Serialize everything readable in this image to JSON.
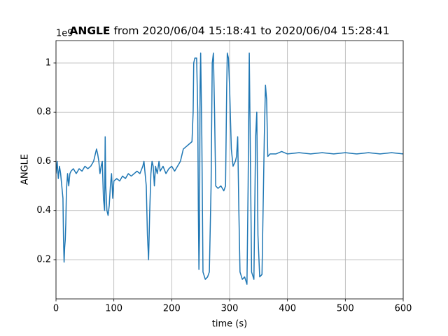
{
  "chart_data": {
    "type": "line",
    "title_bold": "ANGLE",
    "title": "from 2020/06/04 15:18:41 to 2020/06/04 15:28:41",
    "offset_label": "1e9",
    "xlabel": "time (s)",
    "ylabel": "ANGLE",
    "xlim": [
      0,
      600
    ],
    "ylim": [
      0.0405,
      1.091
    ],
    "xticks": [
      0,
      100,
      200,
      300,
      400,
      500,
      600
    ],
    "yticks": [
      0.2,
      0.4,
      0.6,
      0.8,
      1.0
    ],
    "grid": true,
    "x": [
      0,
      2,
      4,
      6,
      8,
      10,
      12,
      13,
      14,
      15,
      16,
      17,
      18,
      20,
      22,
      24,
      26,
      30,
      35,
      40,
      45,
      50,
      55,
      60,
      65,
      70,
      72,
      74,
      76,
      78,
      80,
      82,
      84,
      85,
      86,
      88,
      90,
      92,
      94,
      96,
      98,
      100,
      105,
      110,
      115,
      120,
      125,
      130,
      135,
      140,
      145,
      150,
      152,
      154,
      156,
      158,
      160,
      162,
      164,
      166,
      168,
      170,
      172,
      175,
      178,
      180,
      185,
      190,
      195,
      200,
      205,
      210,
      215,
      220,
      225,
      230,
      235,
      237,
      238,
      240,
      243,
      245,
      246,
      247,
      248,
      249,
      250,
      252,
      254,
      258,
      262,
      265,
      268,
      270,
      272,
      274,
      276,
      280,
      285,
      290,
      293,
      295,
      296,
      298,
      300,
      303,
      306,
      310,
      312,
      314,
      316,
      318,
      322,
      326,
      330,
      332,
      334,
      336,
      338,
      342,
      345,
      347,
      349,
      352,
      356,
      360,
      362,
      364,
      366,
      370,
      380,
      390,
      400,
      420,
      440,
      460,
      480,
      500,
      520,
      540,
      560,
      580,
      600
    ],
    "series": [
      {
        "name": "ANGLE",
        "color": "#1f77b4",
        "values": [
          0.55,
          0.6,
          0.53,
          0.58,
          0.55,
          0.5,
          0.45,
          0.28,
          0.19,
          0.25,
          0.28,
          0.35,
          0.48,
          0.55,
          0.5,
          0.55,
          0.56,
          0.57,
          0.55,
          0.57,
          0.56,
          0.58,
          0.57,
          0.58,
          0.6,
          0.65,
          0.63,
          0.6,
          0.55,
          0.58,
          0.6,
          0.45,
          0.4,
          0.7,
          0.5,
          0.4,
          0.38,
          0.42,
          0.5,
          0.55,
          0.45,
          0.52,
          0.53,
          0.52,
          0.54,
          0.53,
          0.55,
          0.54,
          0.55,
          0.56,
          0.55,
          0.58,
          0.6,
          0.55,
          0.5,
          0.3,
          0.2,
          0.4,
          0.55,
          0.6,
          0.58,
          0.5,
          0.58,
          0.55,
          0.6,
          0.56,
          0.58,
          0.55,
          0.57,
          0.58,
          0.56,
          0.58,
          0.6,
          0.65,
          0.66,
          0.67,
          0.68,
          0.8,
          1.0,
          1.02,
          1.02,
          0.8,
          0.4,
          0.16,
          0.3,
          0.9,
          1.04,
          0.7,
          0.15,
          0.12,
          0.13,
          0.15,
          0.5,
          1.0,
          1.04,
          0.8,
          0.5,
          0.49,
          0.5,
          0.48,
          0.5,
          0.9,
          1.04,
          1.02,
          0.9,
          0.65,
          0.58,
          0.6,
          0.62,
          0.7,
          0.4,
          0.15,
          0.12,
          0.13,
          0.1,
          0.5,
          1.04,
          0.6,
          0.15,
          0.12,
          0.7,
          0.8,
          0.3,
          0.13,
          0.14,
          0.7,
          0.91,
          0.85,
          0.62,
          0.63,
          0.63,
          0.64,
          0.63,
          0.635,
          0.63,
          0.635,
          0.63,
          0.635,
          0.63,
          0.635,
          0.63,
          0.635,
          0.63
        ]
      }
    ]
  }
}
